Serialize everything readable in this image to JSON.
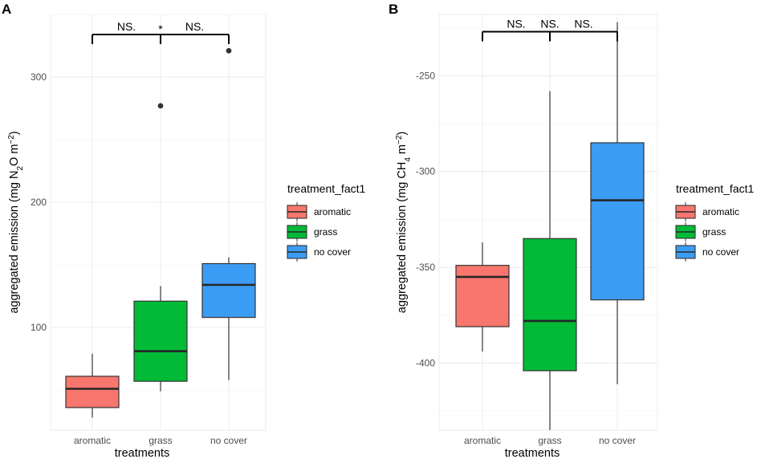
{
  "figure_panels": [
    "A",
    "B"
  ],
  "chart_data": [
    {
      "panel": "A",
      "type": "box",
      "xlabel": "treatments",
      "ylabel": {
        "prefix": "aggregated emission (mg N",
        "sub": "2",
        "mid": "O m",
        "sup": "−2",
        "suffix": ")"
      },
      "ylim": [
        18,
        350
      ],
      "yticks": [
        100,
        200,
        300
      ],
      "categories": [
        "aromatic",
        "grass",
        "no cover"
      ],
      "boxes": [
        {
          "category": "aromatic",
          "color": "#f8766d",
          "min": 28,
          "q1": 36,
          "median": 51,
          "q3": 61,
          "max": 79,
          "outliers": []
        },
        {
          "category": "grass",
          "color": "#00ba38",
          "min": 49,
          "q1": 57,
          "median": 81,
          "q3": 121,
          "max": 133,
          "outliers": [
            277
          ]
        },
        {
          "category": "no cover",
          "color": "#3b9cf3",
          "min": 58,
          "q1": 108,
          "median": 134,
          "q3": 151,
          "max": 156,
          "outliers": [
            321
          ]
        }
      ],
      "significance": [
        {
          "from": "aromatic",
          "to": "grass",
          "label": "NS."
        },
        {
          "from": "grass",
          "to": "no cover",
          "label": "NS."
        }
      ],
      "bracket_y": 334,
      "significance_marker": "*",
      "legend": {
        "title": "treatment_fact1",
        "entries": [
          "aromatic",
          "grass",
          "no cover"
        ]
      }
    },
    {
      "panel": "B",
      "type": "box",
      "xlabel": "treatments",
      "ylabel": {
        "prefix": "aggregated emission (mg CH",
        "sub": "4",
        "mid": " m",
        "sup": "−2",
        "suffix": ")"
      },
      "ylim": [
        -435,
        -218
      ],
      "yticks": [
        -400,
        -350,
        -300,
        -250
      ],
      "categories": [
        "aromatic",
        "grass",
        "no cover"
      ],
      "boxes": [
        {
          "category": "aromatic",
          "color": "#f8766d",
          "min": -394,
          "q1": -381,
          "median": -355,
          "q3": -349,
          "max": -337,
          "outliers": []
        },
        {
          "category": "grass",
          "color": "#00ba38",
          "min": -435,
          "q1": -404,
          "median": -378,
          "q3": -335,
          "max": -258,
          "outliers": []
        },
        {
          "category": "no cover",
          "color": "#3b9cf3",
          "min": -411,
          "q1": -367,
          "median": -315,
          "q3": -285,
          "max": -222,
          "outliers": []
        }
      ],
      "significance": [
        {
          "from": "aromatic",
          "to": "grass",
          "label": "NS."
        },
        {
          "from": "grass",
          "to": "no cover",
          "label": "NS."
        }
      ],
      "extra_label": "NS.",
      "bracket_y": -227,
      "legend": {
        "title": "treatment_fact1",
        "entries": [
          "aromatic",
          "grass",
          "no cover"
        ]
      }
    }
  ]
}
